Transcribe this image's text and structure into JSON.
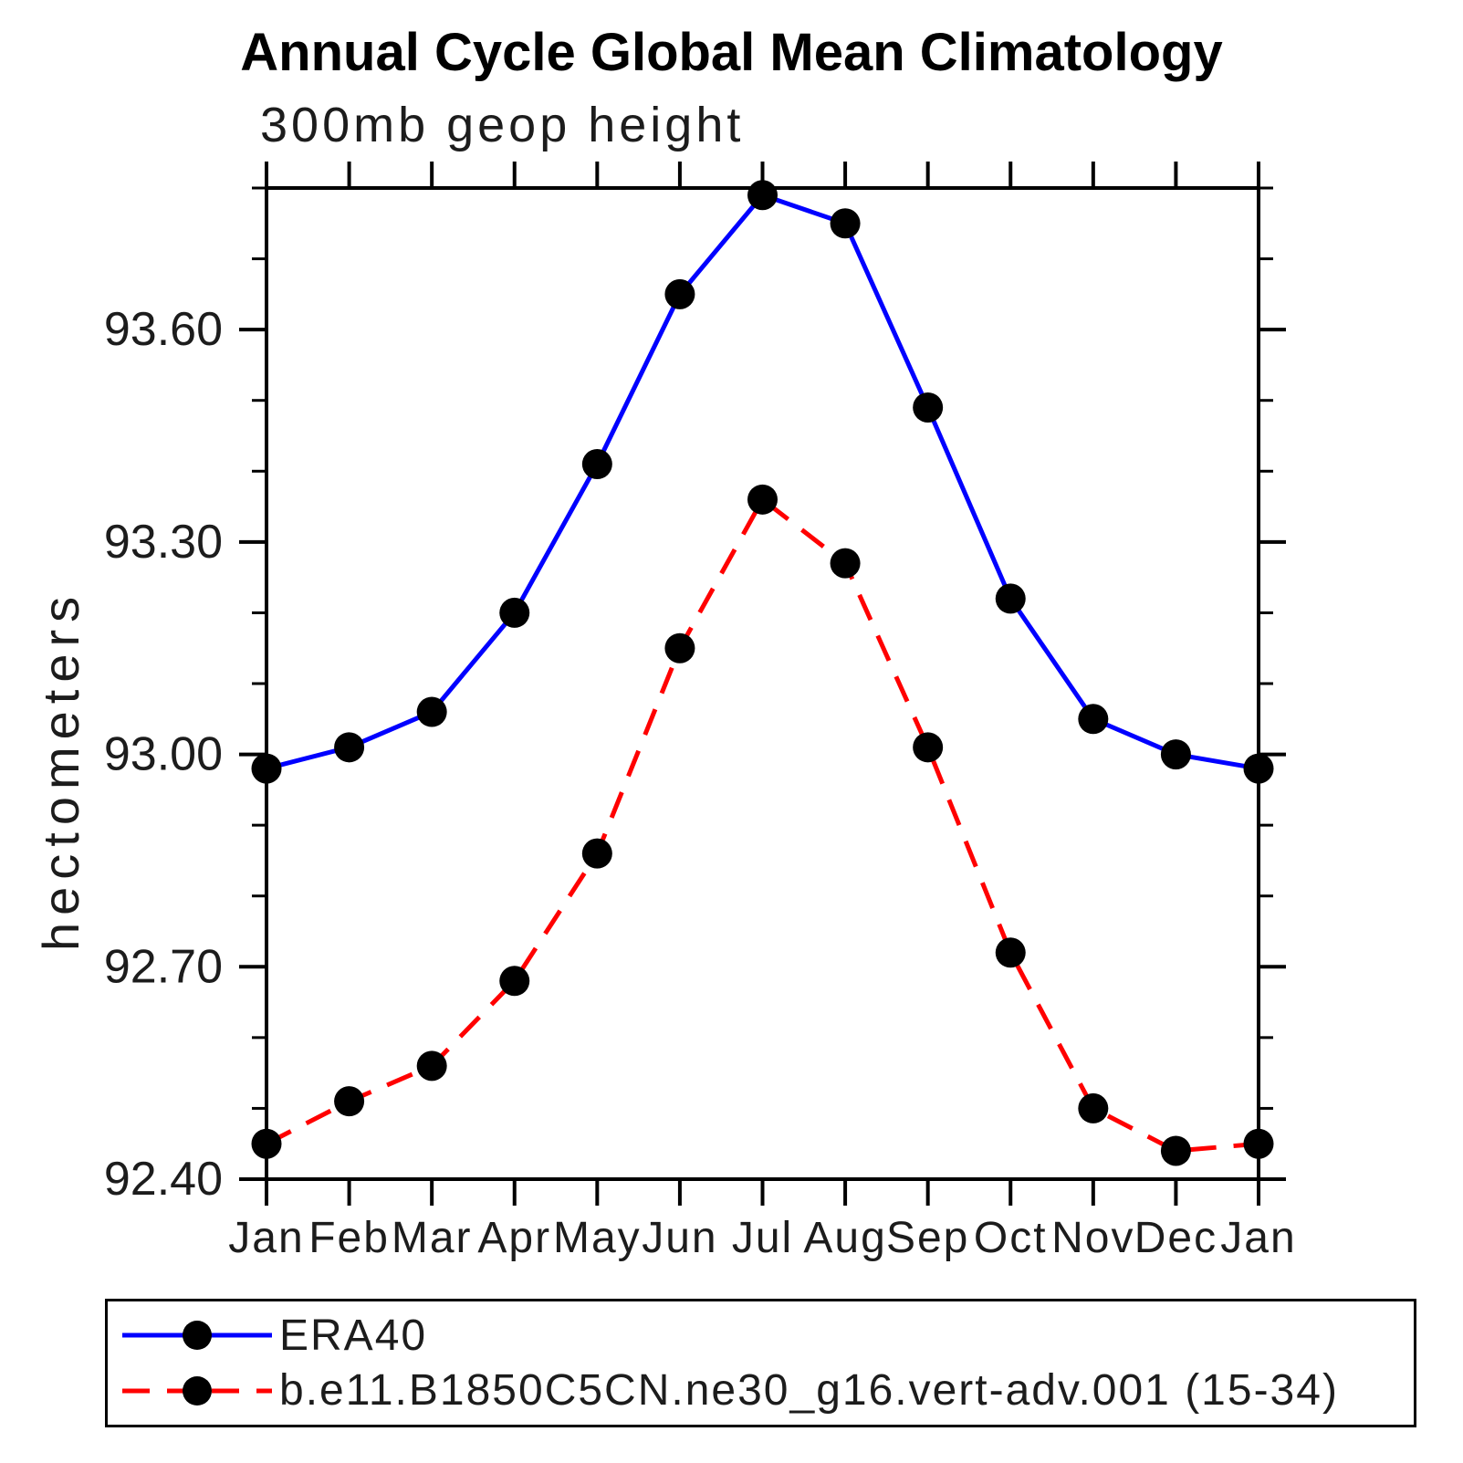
{
  "chart_data": {
    "type": "line",
    "title": "Annual Cycle Global Mean Climatology",
    "subtitle": "300mb geop height",
    "ylabel": "hectometers",
    "categories": [
      "Jan",
      "Feb",
      "Mar",
      "Apr",
      "May",
      "Jun",
      "Jul",
      "Aug",
      "Sep",
      "Oct",
      "Nov",
      "Dec",
      "Jan"
    ],
    "series": [
      {
        "name": "ERA40",
        "color": "#0000ff",
        "style": "solid",
        "marker": "black-circle",
        "values": [
          92.98,
          93.01,
          93.06,
          93.2,
          93.41,
          93.65,
          93.79,
          93.75,
          93.49,
          93.22,
          93.05,
          93.0,
          92.98
        ]
      },
      {
        "name": "b.e11.B1850C5CN.ne30_g16.vert-adv.001 (15-34)",
        "color": "#ff0000",
        "style": "dashed",
        "marker": "black-circle",
        "values": [
          92.45,
          92.51,
          92.56,
          92.68,
          92.86,
          93.15,
          93.36,
          93.27,
          93.01,
          92.72,
          92.5,
          92.44,
          92.45
        ]
      }
    ],
    "ylim": [
      92.4,
      93.8
    ],
    "yticks_major": [
      92.4,
      92.7,
      93.0,
      93.3,
      93.6
    ],
    "ytick_labels": [
      "92.40",
      "92.70",
      "93.00",
      "93.30",
      "93.60"
    ],
    "ytick_minor_step": 0.1,
    "grid": false,
    "marker_color": "#000000",
    "axis_color": "#000000",
    "legend_position": "bottom-left-box"
  }
}
